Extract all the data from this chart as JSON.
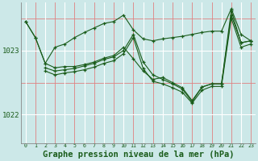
{
  "bg_color": "#cce8e8",
  "grid_color_white": "#ffffff",
  "grid_color_red": "#e08080",
  "line_color": "#1a5c1a",
  "label_color": "#1a5c1a",
  "xlabel": "Graphe pression niveau de la mer (hPa)",
  "xlabel_fontsize": 7.5,
  "yticks": [
    1022,
    1023
  ],
  "xlim": [
    -0.5,
    23.5
  ],
  "ylim": [
    1021.55,
    1023.75
  ],
  "lines": [
    {
      "x": [
        0,
        1,
        2,
        3,
        4,
        5,
        6,
        7,
        8,
        9,
        10,
        11,
        12,
        13,
        14,
        15,
        16,
        17,
        18,
        19,
        20,
        21,
        22,
        23
      ],
      "y": [
        1023.45,
        1023.2,
        1022.8,
        1023.05,
        1023.1,
        1023.2,
        1023.28,
        1023.35,
        1023.42,
        1023.45,
        1023.55,
        1023.32,
        1023.18,
        1023.15,
        1023.18,
        1023.2,
        1023.22,
        1023.25,
        1023.28,
        1023.3,
        1023.3,
        1023.65,
        1023.25,
        1023.15
      ]
    },
    {
      "x": [
        0,
        1,
        2,
        3,
        4,
        5,
        6,
        7,
        8,
        9,
        10,
        11,
        12,
        13,
        14,
        15,
        16,
        17,
        18,
        19,
        20,
        21,
        22,
        23
      ],
      "y": [
        1023.45,
        1023.2,
        1022.8,
        1022.73,
        1022.75,
        1022.75,
        1022.78,
        1022.82,
        1022.88,
        1022.92,
        1023.05,
        1022.87,
        1022.68,
        1022.55,
        1022.58,
        1022.5,
        1022.42,
        1022.22,
        1022.43,
        1022.48,
        1022.48,
        1023.62,
        1023.12,
        1023.15
      ]
    },
    {
      "x": [
        2,
        3,
        4,
        5,
        6,
        7,
        8,
        9,
        10,
        11,
        12,
        13,
        14,
        15,
        16,
        17,
        18,
        19,
        20,
        21,
        22,
        23
      ],
      "y": [
        1022.73,
        1022.68,
        1022.7,
        1022.72,
        1022.76,
        1022.8,
        1022.86,
        1022.9,
        1023.0,
        1023.25,
        1022.82,
        1022.62,
        1022.55,
        1022.48,
        1022.4,
        1022.2,
        1022.43,
        1022.48,
        1022.48,
        1023.55,
        1023.12,
        1023.15
      ]
    },
    {
      "x": [
        2,
        3,
        4,
        5,
        6,
        7,
        8,
        9,
        10,
        11,
        12,
        13,
        14,
        15,
        16,
        17,
        18,
        19,
        20,
        21,
        22,
        23
      ],
      "y": [
        1022.68,
        1022.62,
        1022.65,
        1022.67,
        1022.7,
        1022.74,
        1022.8,
        1022.84,
        1022.95,
        1023.2,
        1022.72,
        1022.52,
        1022.48,
        1022.42,
        1022.35,
        1022.18,
        1022.38,
        1022.44,
        1022.44,
        1023.5,
        1023.05,
        1023.1
      ]
    }
  ]
}
